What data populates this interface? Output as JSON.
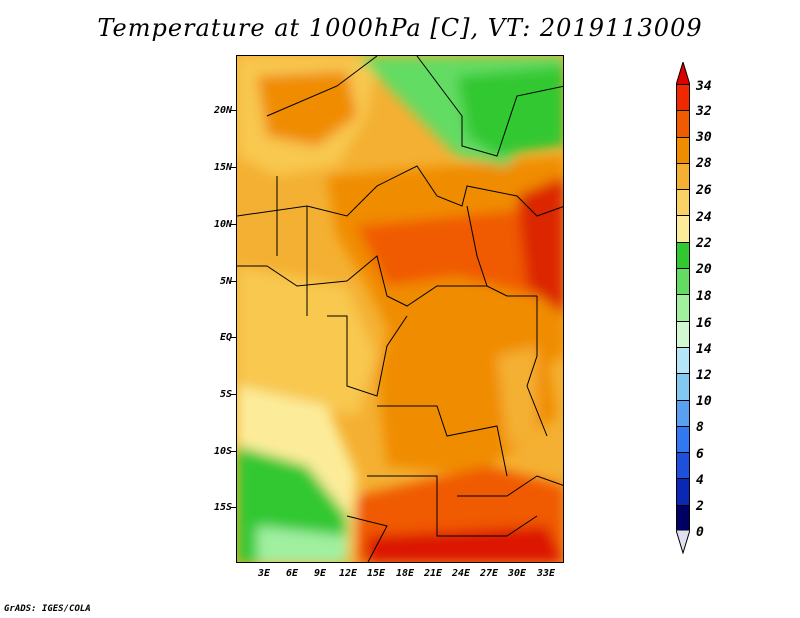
{
  "title": "Temperature at 1000hPa [C], VT: 2019113009",
  "footer": "GrADS: IGES/COLA",
  "map": {
    "lat_labels": [
      "20N",
      "15N",
      "10N",
      "5N",
      "EQ",
      "5S",
      "10S",
      "15S"
    ],
    "lon_labels": [
      "3E",
      "6E",
      "9E",
      "12E",
      "15E",
      "18E",
      "21E",
      "24E",
      "27E",
      "30E",
      "33E"
    ]
  },
  "colorbar": {
    "labels": [
      "34",
      "32",
      "30",
      "28",
      "26",
      "24",
      "22",
      "20",
      "18",
      "16",
      "14",
      "12",
      "10",
      "8",
      "6",
      "4",
      "2",
      "0"
    ],
    "colors": [
      "#dc0000",
      "#f02800",
      "#f05a00",
      "#f08c00",
      "#f4b032",
      "#f8d264",
      "#fcec9a",
      "#32c832",
      "#64dc64",
      "#a0f0a0",
      "#d2f8d2",
      "#b4e6f8",
      "#82c8f0",
      "#5aa0f0",
      "#3278f0",
      "#1e50dc",
      "#0a28b4",
      "#000064",
      "#e0e0f0"
    ]
  }
}
